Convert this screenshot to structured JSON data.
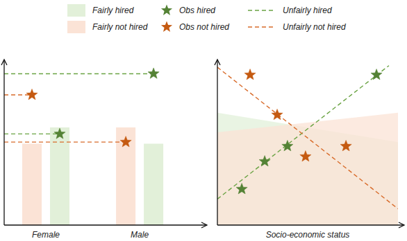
{
  "chart_data": [
    {
      "type": "bar",
      "categories": [
        "Female",
        "Male"
      ],
      "ylim": [
        0,
        100
      ],
      "tick_labels": false,
      "legend": "top",
      "series": [
        {
          "name": "Fairly hired",
          "type": "bar",
          "color": "#e2f0d9",
          "values": [
            60,
            50
          ]
        },
        {
          "name": "Fairly not hired",
          "type": "bar",
          "color": "#fbe3d6",
          "values": [
            50,
            60
          ]
        },
        {
          "name": "Obs hired",
          "type": "scatter",
          "marker": "star",
          "color": "#548235",
          "values": [
            56,
            93
          ]
        },
        {
          "name": "Obs not hired",
          "type": "scatter",
          "marker": "star",
          "color": "#c55a11",
          "values": [
            80,
            51
          ]
        },
        {
          "name": "Unfairly hired",
          "type": "line",
          "line_style": "dashed",
          "color": "#6aa343",
          "values": [
            56,
            93
          ]
        },
        {
          "name": "Unfairly not hired",
          "type": "line",
          "line_style": "dashed",
          "color": "#d86b2a",
          "values": [
            80,
            51
          ]
        }
      ]
    },
    {
      "type": "scatter",
      "x_label": "Socio-economic status",
      "xlim": [
        0,
        100
      ],
      "ylim": [
        0,
        100
      ],
      "tick_labels": false,
      "series": [
        {
          "name": "Fairly hired",
          "type": "area",
          "color": "#e2f0d9",
          "x": [
            0,
            100
          ],
          "values": [
            69,
            51
          ]
        },
        {
          "name": "Fairly not hired",
          "type": "area",
          "color": "#fbe3d6",
          "x": [
            0,
            100
          ],
          "values": [
            57,
            69
          ]
        },
        {
          "name": "Obs hired",
          "type": "scatter",
          "marker": "star",
          "color": "#548235",
          "x": [
            13.5,
            26.2,
            38.8,
            88.1
          ],
          "values": [
            22.1,
            39.1,
            48.5,
            92.3
          ]
        },
        {
          "name": "Obs not hired",
          "type": "scatter",
          "marker": "star",
          "color": "#c55a11",
          "x": [
            18.1,
            33.1,
            48.8,
            71.2
          ],
          "values": [
            92.3,
            67.7,
            42.1,
            48.5
          ]
        },
        {
          "name": "Unfairly hired",
          "type": "line",
          "line_style": "dashed",
          "color": "#6aa343",
          "x": [
            0,
            95
          ],
          "values": [
            16,
            98
          ]
        },
        {
          "name": "Unfairly not hired",
          "type": "line",
          "line_style": "dashed",
          "color": "#d86b2a",
          "x": [
            0,
            100
          ],
          "values": [
            97,
            10
          ]
        }
      ]
    }
  ]
}
